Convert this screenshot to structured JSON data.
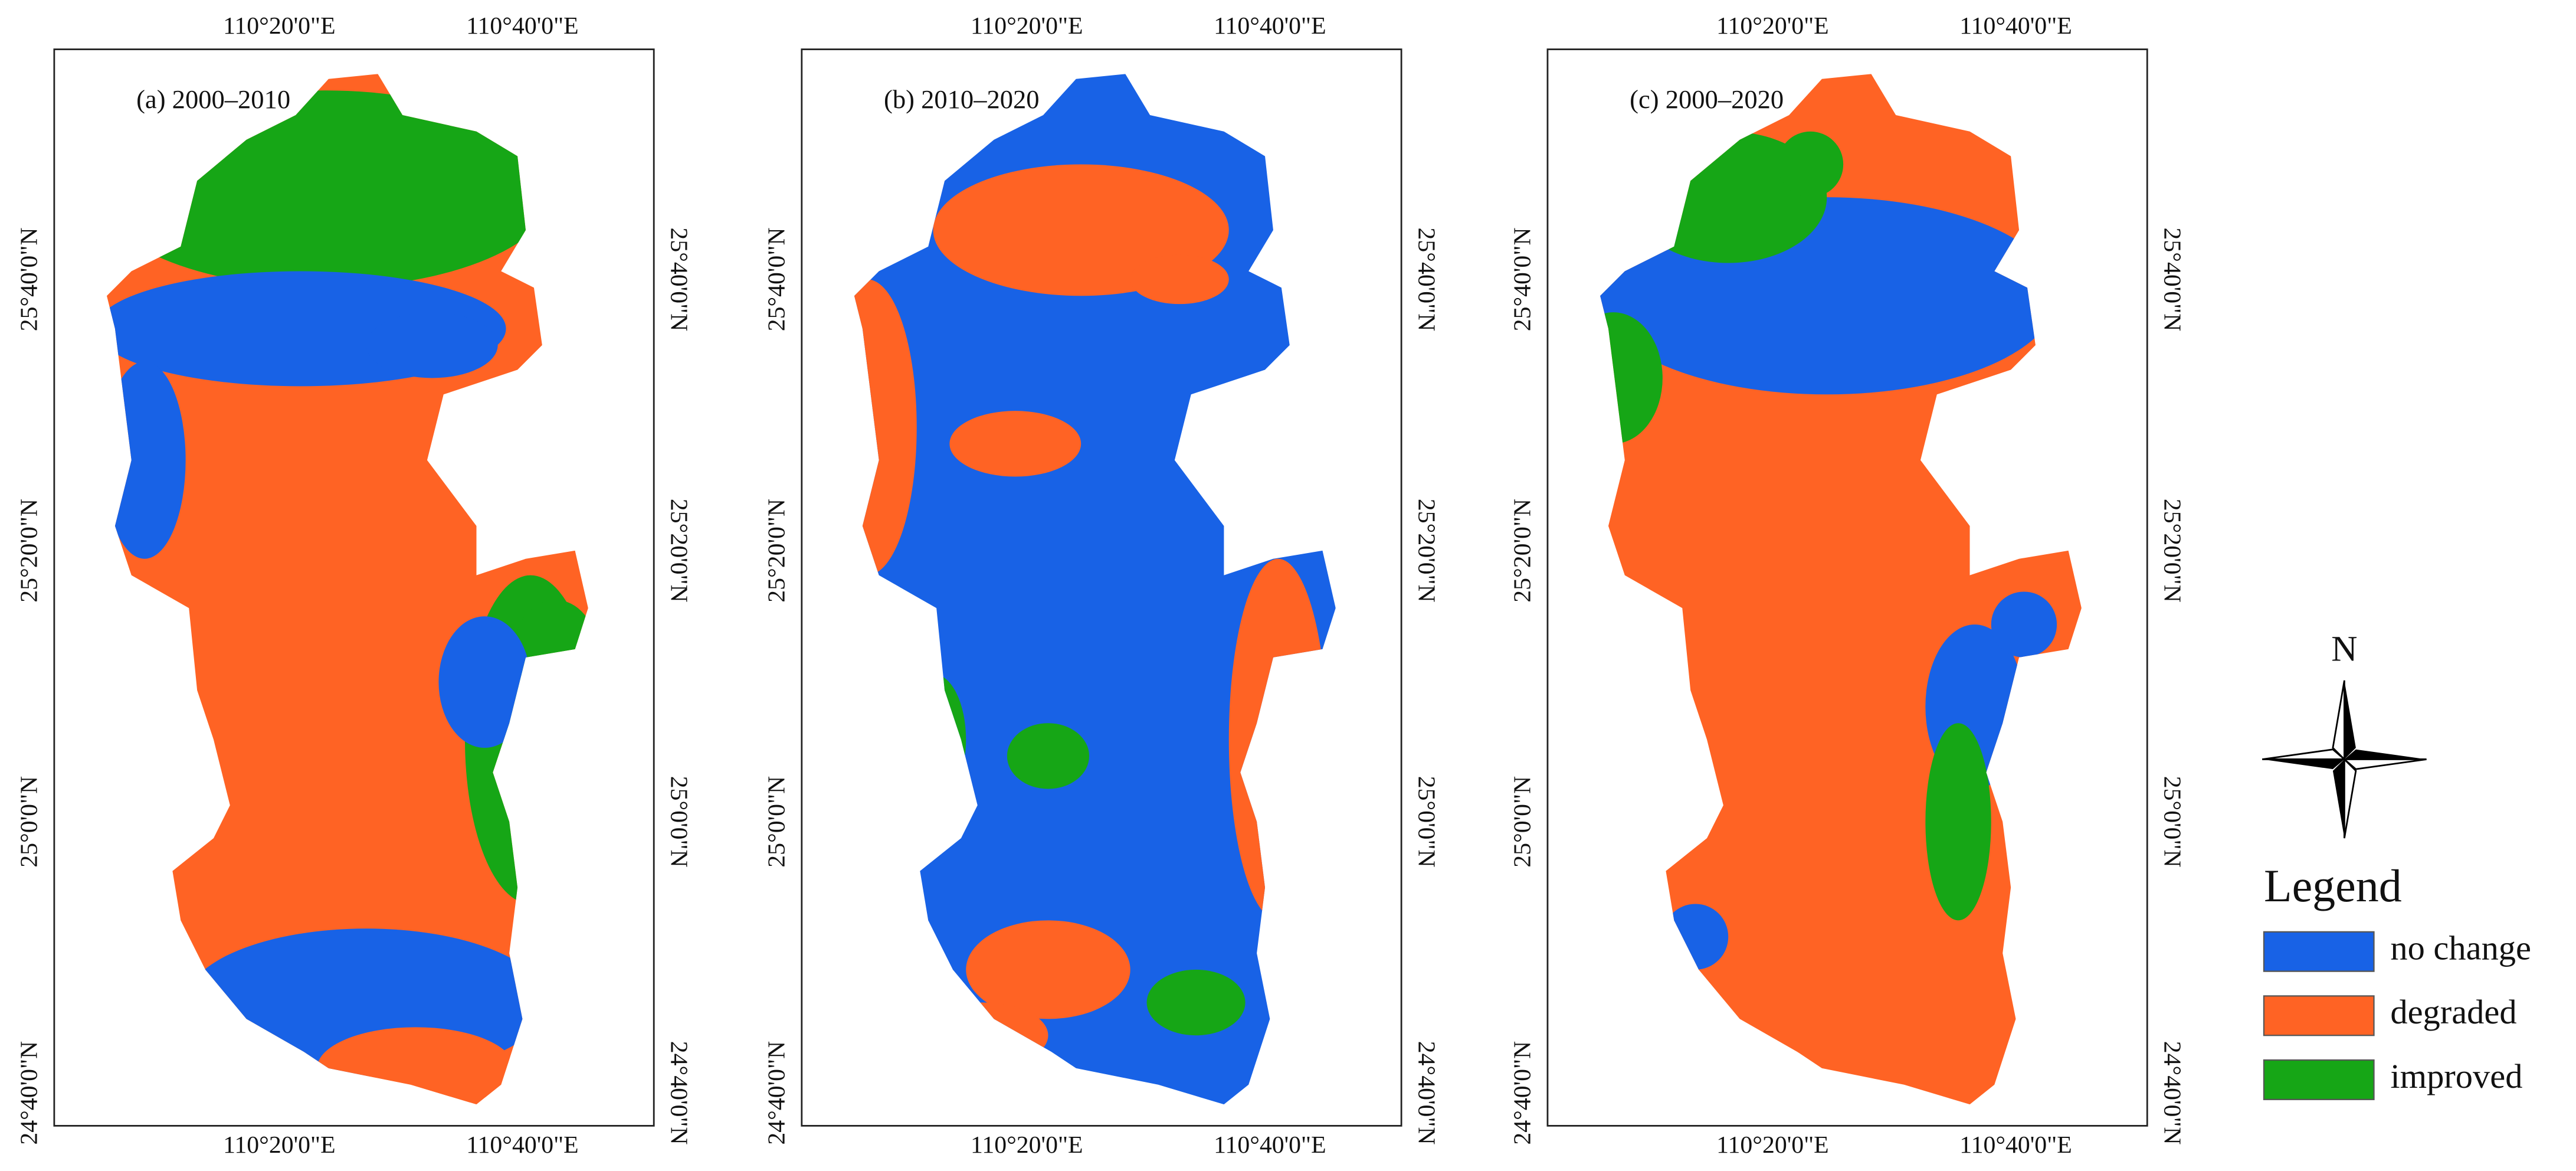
{
  "panels": [
    {
      "title": "(a) 2000–2010",
      "lon_ticks": [
        "110°20'0\"E",
        "110°40'0\"E"
      ],
      "lat_ticks": [
        "25°40'0\"N",
        "25°20'0\"N",
        "25°0'0\"N",
        "24°40'0\"N"
      ]
    },
    {
      "title": "(b) 2010–2020",
      "lon_ticks": [
        "110°20'0\"E",
        "110°40'0\"E"
      ],
      "lat_ticks": [
        "25°40'0\"N",
        "25°20'0\"N",
        "25°0'0\"N",
        "24°40'0\"N"
      ]
    },
    {
      "title": "(c) 2000–2020",
      "lon_ticks": [
        "110°20'0\"E",
        "110°40'0\"E"
      ],
      "lat_ticks": [
        "25°40'0\"N",
        "25°20'0\"N",
        "25°0'0\"N",
        "24°40'0\"N"
      ]
    }
  ],
  "north_label": "N",
  "legend": {
    "title": "Legend",
    "items": [
      {
        "label": "no change",
        "color": "#1862e6"
      },
      {
        "label": "degraded",
        "color": "#ff6324"
      },
      {
        "label": "improved",
        "color": "#16a616"
      }
    ]
  }
}
